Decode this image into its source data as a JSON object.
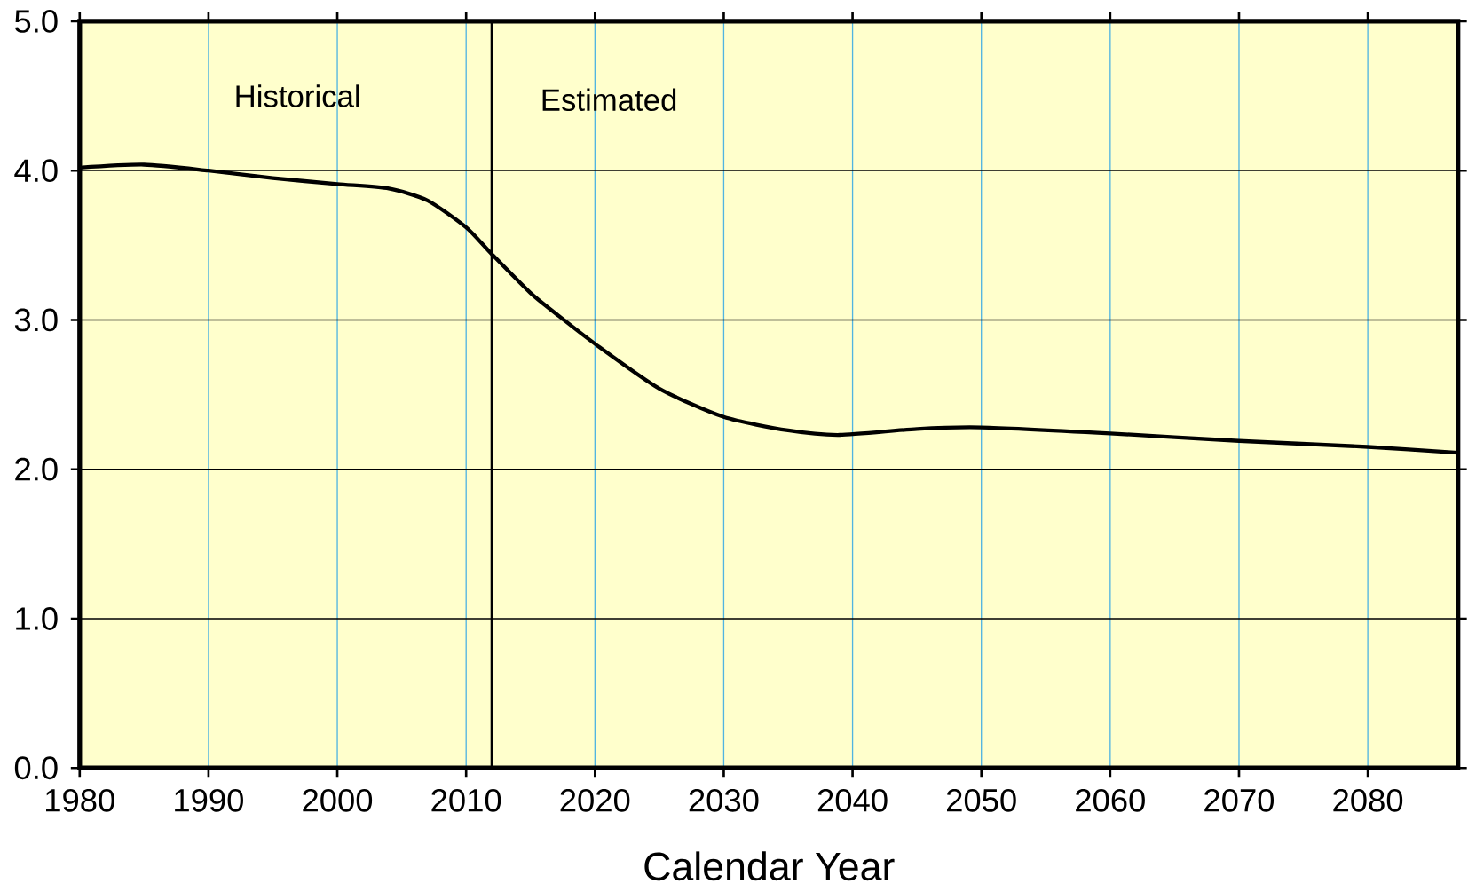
{
  "chart_data": {
    "type": "line",
    "xlabel": "Calendar Year",
    "annotations": [
      "Historical",
      "Estimated"
    ],
    "x": [
      1980,
      1985,
      1990,
      1995,
      2000,
      2004,
      2007,
      2010,
      2012,
      2015,
      2017,
      2020,
      2025,
      2030,
      2035,
      2039,
      2045,
      2050,
      2060,
      2070,
      2080,
      2087
    ],
    "series": [
      {
        "color": "#000000",
        "values": [
          4.02,
          4.04,
          4.0,
          3.95,
          3.91,
          3.88,
          3.8,
          3.62,
          3.44,
          3.18,
          3.04,
          2.84,
          2.54,
          2.35,
          2.26,
          2.23,
          2.27,
          2.28,
          2.24,
          2.19,
          2.15,
          2.11
        ]
      }
    ],
    "xlim": [
      1980,
      2087
    ],
    "ylim": [
      0,
      5
    ],
    "xticks": [
      1980,
      1990,
      2000,
      2010,
      2020,
      2030,
      2040,
      2050,
      2060,
      2070,
      2080
    ],
    "yticks": [
      {
        "value": 0,
        "label": "0.0"
      },
      {
        "value": 1,
        "label": "1.0"
      },
      {
        "value": 2,
        "label": "2.0"
      },
      {
        "value": 3,
        "label": "3.0"
      },
      {
        "value": 4,
        "label": "4.0"
      },
      {
        "value": 5,
        "label": "5.0"
      }
    ],
    "ref_lines": [
      {
        "axis": "x",
        "value": 2012,
        "color": "#000000"
      }
    ],
    "grid": true,
    "marker": "none",
    "line_style": "solid"
  }
}
